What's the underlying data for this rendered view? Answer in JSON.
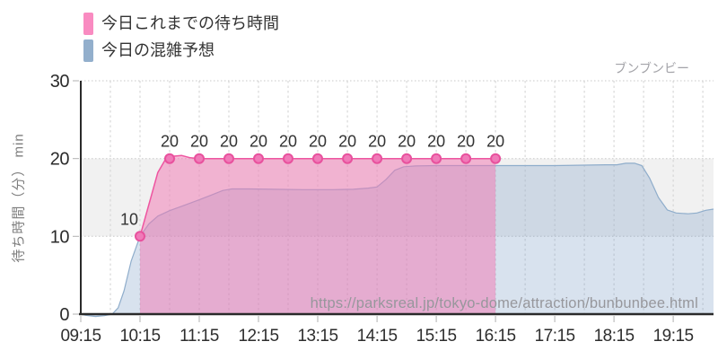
{
  "brand": "ブンブンビー",
  "watermark": "https://parksreal.jp/tokyo-dome/attraction/bunbunbee.html",
  "legend": {
    "items": [
      {
        "label": "今日これまでの待ち時間",
        "color": "#f98bc1"
      },
      {
        "label": "今日の混雑予想",
        "color": "#93afcc"
      }
    ]
  },
  "chart_data": {
    "type": "area",
    "title": "ブンブンビー",
    "ylabel": "待ち時間（分） min",
    "ylim": [
      0,
      30
    ],
    "yticks": [
      0,
      10,
      20,
      30
    ],
    "x_domain": [
      9.25,
      19.93
    ],
    "xticks": [
      {
        "t": 9.25,
        "label": "09:15"
      },
      {
        "t": 10.25,
        "label": "10:15"
      },
      {
        "t": 11.25,
        "label": "11:15"
      },
      {
        "t": 12.25,
        "label": "12:15"
      },
      {
        "t": 13.25,
        "label": "13:15"
      },
      {
        "t": 14.25,
        "label": "14:15"
      },
      {
        "t": 15.25,
        "label": "15:15"
      },
      {
        "t": 16.25,
        "label": "16:15"
      },
      {
        "t": 17.25,
        "label": "17:15"
      },
      {
        "t": 18.25,
        "label": "18:15"
      },
      {
        "t": 19.25,
        "label": "19:15"
      }
    ],
    "grid_x": {
      "start": 9.75,
      "end": 19.75,
      "step": 0.5
    },
    "band": {
      "from": 10,
      "to": 20,
      "color": "#f1f1f1"
    },
    "series": [
      {
        "name": "今日の混雑予想",
        "line_color": "#8fadcb",
        "fill_color": "rgba(125,160,198,0.3)",
        "points": [
          [
            9.25,
            0
          ],
          [
            9.33,
            -0.15
          ],
          [
            9.5,
            -0.3
          ],
          [
            9.65,
            -0.2
          ],
          [
            9.78,
            0
          ],
          [
            9.88,
            0.8
          ],
          [
            9.98,
            3
          ],
          [
            10.1,
            6.8
          ],
          [
            10.25,
            10
          ],
          [
            10.4,
            11.6
          ],
          [
            10.55,
            12.6
          ],
          [
            10.75,
            13.3
          ],
          [
            11.0,
            14.0
          ],
          [
            11.25,
            14.7
          ],
          [
            11.45,
            15.3
          ],
          [
            11.65,
            15.9
          ],
          [
            11.8,
            16.1
          ],
          [
            12.1,
            16.1
          ],
          [
            12.5,
            16.05
          ],
          [
            13.0,
            16.0
          ],
          [
            13.5,
            16.0
          ],
          [
            13.85,
            16.05
          ],
          [
            14.1,
            16.2
          ],
          [
            14.25,
            16.35
          ],
          [
            14.4,
            17.3
          ],
          [
            14.55,
            18.5
          ],
          [
            14.7,
            18.95
          ],
          [
            14.9,
            19.05
          ],
          [
            15.25,
            19.1
          ],
          [
            15.75,
            19.1
          ],
          [
            16.25,
            19.1
          ],
          [
            16.75,
            19.1
          ],
          [
            17.25,
            19.1
          ],
          [
            17.75,
            19.15
          ],
          [
            18.1,
            19.2
          ],
          [
            18.3,
            19.2
          ],
          [
            18.45,
            19.4
          ],
          [
            18.6,
            19.4
          ],
          [
            18.72,
            19.1
          ],
          [
            18.85,
            17.5
          ],
          [
            19.0,
            15.0
          ],
          [
            19.15,
            13.4
          ],
          [
            19.3,
            13.0
          ],
          [
            19.5,
            12.9
          ],
          [
            19.65,
            13.0
          ],
          [
            19.8,
            13.35
          ],
          [
            19.93,
            13.5
          ]
        ]
      },
      {
        "name": "今日これまでの待ち時間",
        "line_color": "#ee55a0",
        "fill_color": "rgba(242,118,178,0.5)",
        "points": [
          [
            10.25,
            10
          ],
          [
            10.55,
            18.2
          ],
          [
            10.68,
            19.9
          ],
          [
            10.8,
            20.3
          ],
          [
            10.95,
            20.4
          ],
          [
            11.1,
            20.1
          ],
          [
            11.25,
            20
          ],
          [
            16.25,
            20
          ]
        ],
        "markers": [
          {
            "t": 10.25,
            "v": 10,
            "label": "10"
          },
          {
            "t": 10.75,
            "v": 20,
            "label": "20"
          },
          {
            "t": 11.25,
            "v": 20,
            "label": "20"
          },
          {
            "t": 11.75,
            "v": 20,
            "label": "20"
          },
          {
            "t": 12.25,
            "v": 20,
            "label": "20"
          },
          {
            "t": 12.75,
            "v": 20,
            "label": "20"
          },
          {
            "t": 13.25,
            "v": 20,
            "label": "20"
          },
          {
            "t": 13.75,
            "v": 20,
            "label": "20"
          },
          {
            "t": 14.25,
            "v": 20,
            "label": "20"
          },
          {
            "t": 14.75,
            "v": 20,
            "label": "20"
          },
          {
            "t": 15.25,
            "v": 20,
            "label": "20"
          },
          {
            "t": 15.75,
            "v": 20,
            "label": "20"
          },
          {
            "t": 16.25,
            "v": 20,
            "label": "20"
          }
        ],
        "marker_fill": "#f07ab8",
        "marker_stroke": "#e8519d"
      }
    ]
  }
}
